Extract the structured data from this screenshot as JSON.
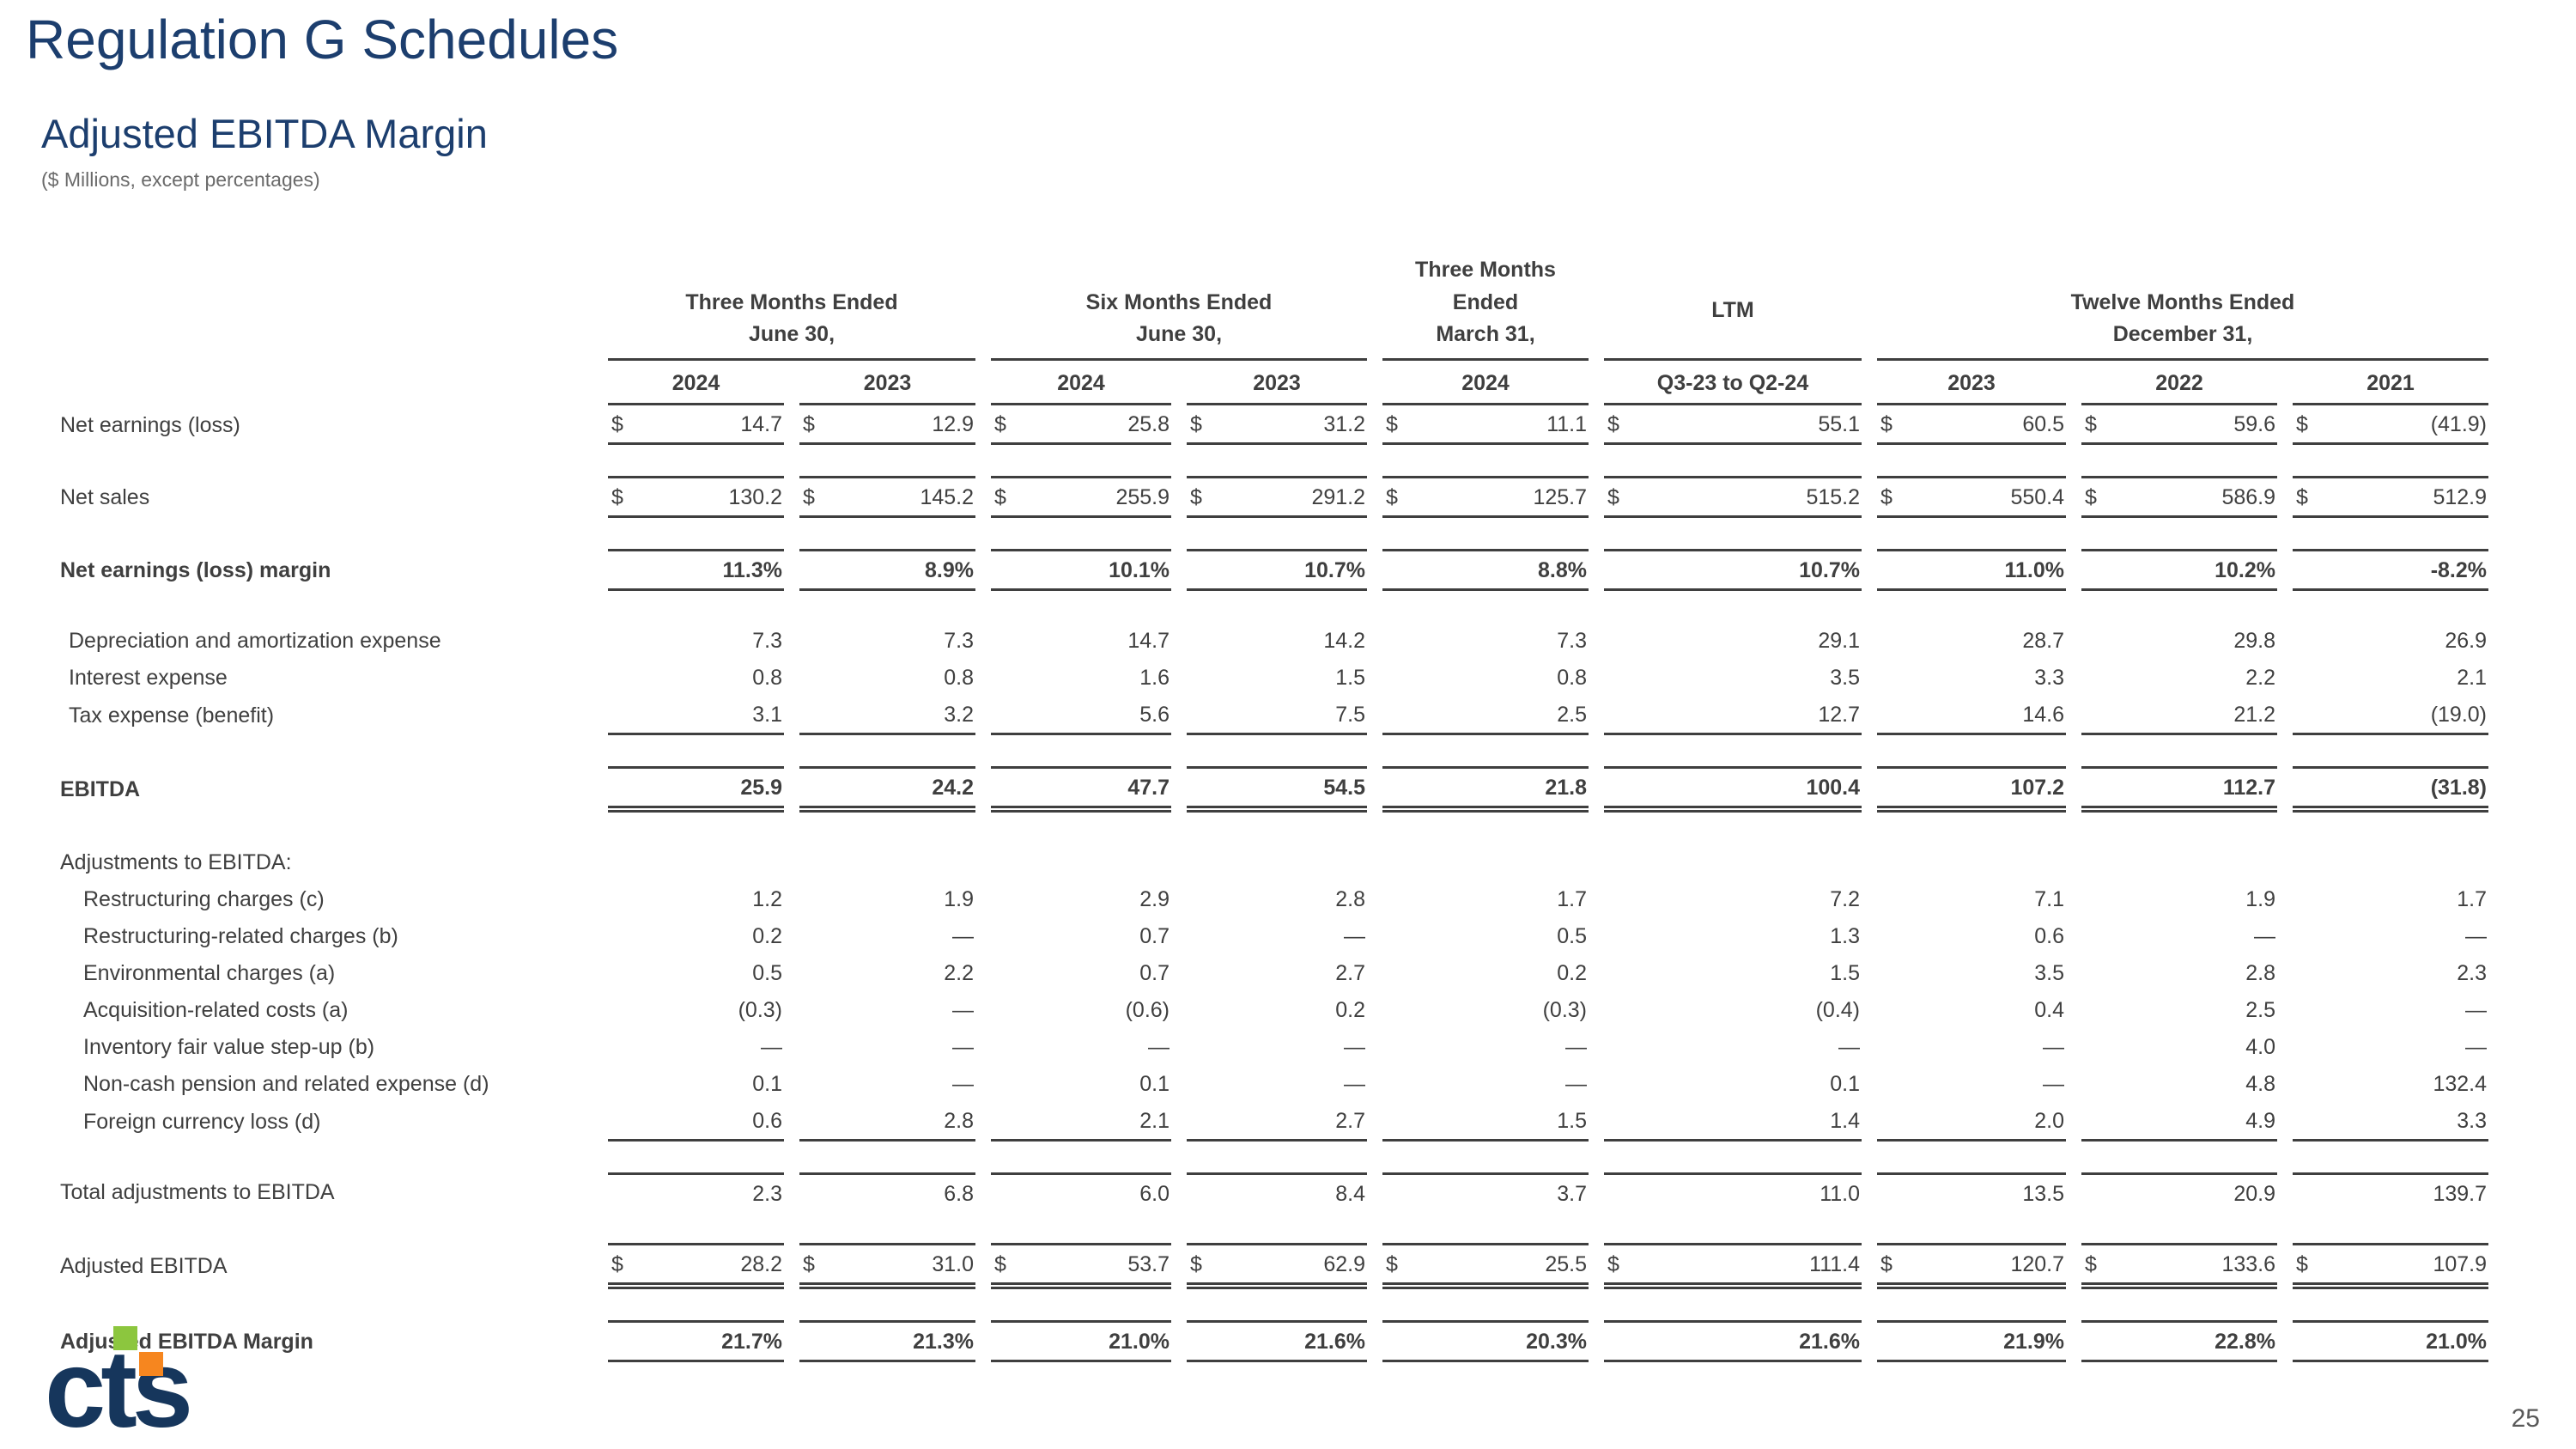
{
  "slide": {
    "title": "Regulation G Schedules",
    "subtitle": "Adjusted EBITDA Margin",
    "units_note": "($ Millions, except percentages)",
    "page_number": "25",
    "logo_text": "cts",
    "colors": {
      "heading_blue": "#1c3e6e",
      "logo_navy": "#16365c",
      "logo_green": "#8cc63e",
      "logo_orange": "#f6861f",
      "table_text": "#3f3f3f"
    }
  },
  "table": {
    "column_groups": [
      {
        "lines": [
          "Three Months Ended",
          "June 30,"
        ],
        "cols": [
          "2024",
          "2023"
        ]
      },
      {
        "lines": [
          "Six Months Ended",
          "June 30,"
        ],
        "cols": [
          "2024",
          "2023"
        ]
      },
      {
        "lines": [
          "Three Months Ended",
          "March 31,"
        ],
        "cols": [
          "2024"
        ]
      },
      {
        "lines": [
          "LTM"
        ],
        "cols": [
          "Q3-23 to Q2-24"
        ]
      },
      {
        "lines": [
          "Twelve Months Ended",
          "December 31,"
        ],
        "cols": [
          "2023",
          "2022",
          "2021"
        ]
      }
    ],
    "rows": [
      {
        "label": "Net earnings (loss)",
        "dollar": true,
        "bottom": "single",
        "values": [
          "14.7",
          "12.9",
          "25.8",
          "31.2",
          "11.1",
          "55.1",
          "60.5",
          "59.6",
          "(41.9)"
        ]
      },
      {
        "type": "spacer"
      },
      {
        "label": "Net sales",
        "dollar": true,
        "top": true,
        "bottom": "single",
        "values": [
          "130.2",
          "145.2",
          "255.9",
          "291.2",
          "125.7",
          "515.2",
          "550.4",
          "586.9",
          "512.9"
        ]
      },
      {
        "type": "spacer"
      },
      {
        "label": "Net earnings (loss) margin",
        "bold": true,
        "top": true,
        "bottom": "single",
        "values": [
          "11.3%",
          "8.9%",
          "10.1%",
          "10.7%",
          "8.8%",
          "10.7%",
          "11.0%",
          "10.2%",
          "-8.2%"
        ]
      },
      {
        "type": "spacer"
      },
      {
        "label": "Depreciation and amortization expense",
        "indent": 1,
        "values": [
          "7.3",
          "7.3",
          "14.7",
          "14.2",
          "7.3",
          "29.1",
          "28.7",
          "29.8",
          "26.9"
        ]
      },
      {
        "label": "Interest expense",
        "indent": 1,
        "values": [
          "0.8",
          "0.8",
          "1.6",
          "1.5",
          "0.8",
          "3.5",
          "3.3",
          "2.2",
          "2.1"
        ]
      },
      {
        "label": "Tax expense (benefit)",
        "indent": 1,
        "bottom": "single",
        "values": [
          "3.1",
          "3.2",
          "5.6",
          "7.5",
          "2.5",
          "12.7",
          "14.6",
          "21.2",
          "(19.0)"
        ]
      },
      {
        "type": "spacer"
      },
      {
        "label": "EBITDA",
        "bold": true,
        "top": true,
        "bottom": "double",
        "values": [
          "25.9",
          "24.2",
          "47.7",
          "54.5",
          "21.8",
          "100.4",
          "107.2",
          "112.7",
          "(31.8)"
        ]
      },
      {
        "type": "spacer"
      },
      {
        "label": "Adjustments to EBITDA:",
        "values": [
          "",
          "",
          "",
          "",
          "",
          "",
          "",
          "",
          ""
        ]
      },
      {
        "label": "Restructuring charges (c)",
        "indent": 2,
        "values": [
          "1.2",
          "1.9",
          "2.9",
          "2.8",
          "1.7",
          "7.2",
          "7.1",
          "1.9",
          "1.7"
        ]
      },
      {
        "label": "Restructuring-related charges (b)",
        "indent": 2,
        "values": [
          "0.2",
          "—",
          "0.7",
          "—",
          "0.5",
          "1.3",
          "0.6",
          "—",
          "—"
        ]
      },
      {
        "label": "Environmental charges (a)",
        "indent": 2,
        "values": [
          "0.5",
          "2.2",
          "0.7",
          "2.7",
          "0.2",
          "1.5",
          "3.5",
          "2.8",
          "2.3"
        ]
      },
      {
        "label": "Acquisition-related costs (a)",
        "indent": 2,
        "values": [
          "(0.3)",
          "—",
          "(0.6)",
          "0.2",
          "(0.3)",
          "(0.4)",
          "0.4",
          "2.5",
          "—"
        ]
      },
      {
        "label": "Inventory fair value step-up (b)",
        "indent": 2,
        "values": [
          "—",
          "—",
          "—",
          "—",
          "—",
          "—",
          "—",
          "4.0",
          "—"
        ]
      },
      {
        "label": "Non-cash pension and related expense (d)",
        "indent": 2,
        "values": [
          "0.1",
          "—",
          "0.1",
          "—",
          "—",
          "0.1",
          "—",
          "4.8",
          "132.4"
        ]
      },
      {
        "label": "Foreign currency loss (d)",
        "indent": 2,
        "bottom": "single",
        "values": [
          "0.6",
          "2.8",
          "2.1",
          "2.7",
          "1.5",
          "1.4",
          "2.0",
          "4.9",
          "3.3"
        ]
      },
      {
        "type": "spacer"
      },
      {
        "label": "Total adjustments to EBITDA",
        "top": true,
        "values": [
          "2.3",
          "6.8",
          "6.0",
          "8.4",
          "3.7",
          "11.0",
          "13.5",
          "20.9",
          "139.7"
        ]
      },
      {
        "type": "spacer"
      },
      {
        "label": "Adjusted EBITDA",
        "dollar": true,
        "top": true,
        "bottom": "double",
        "values": [
          "28.2",
          "31.0",
          "53.7",
          "62.9",
          "25.5",
          "111.4",
          "120.7",
          "133.6",
          "107.9"
        ]
      },
      {
        "type": "spacer"
      },
      {
        "label": "Adjusted EBITDA Margin",
        "bold": true,
        "top": true,
        "bottom": "single",
        "values": [
          "21.7%",
          "21.3%",
          "21.0%",
          "21.6%",
          "20.3%",
          "21.6%",
          "21.9%",
          "22.8%",
          "21.0%"
        ]
      }
    ]
  }
}
